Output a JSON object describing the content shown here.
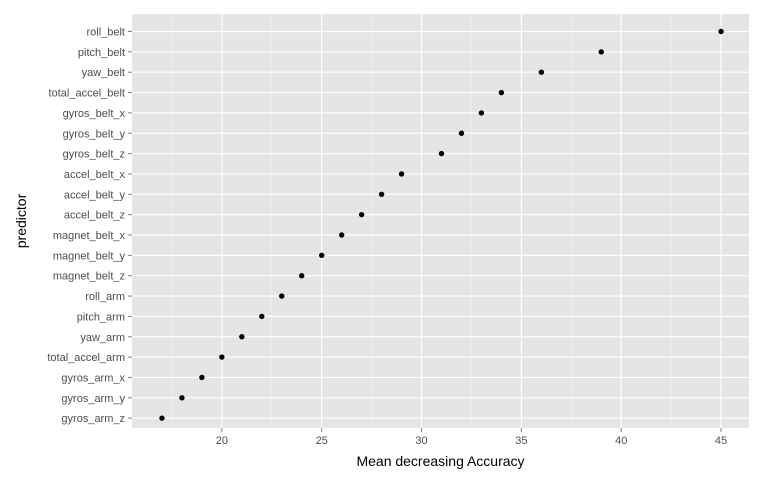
{
  "chart_data": {
    "type": "scatter",
    "title": "",
    "xlabel": "Mean decreasing Accuracy",
    "ylabel": "predictor",
    "xlim": [
      15.5,
      46.4
    ],
    "x_ticks": [
      20,
      25,
      30,
      35,
      40,
      45
    ],
    "x_tick_labels": [
      "20",
      "25",
      "30",
      "35",
      "40",
      "45"
    ],
    "grid": true,
    "legend": "none",
    "colors": {
      "panel_background": "#e5e5e5",
      "grid_major": "#ffffff",
      "grid_minor": "#f2f2f2",
      "point": "#000000",
      "tick_text": "#4d4d4d",
      "axis_title": "#000000"
    },
    "categories": [
      "roll_belt",
      "pitch_belt",
      "yaw_belt",
      "total_accel_belt",
      "gyros_belt_x",
      "gyros_belt_y",
      "gyros_belt_z",
      "accel_belt_x",
      "accel_belt_y",
      "accel_belt_z",
      "magnet_belt_x",
      "magnet_belt_y",
      "magnet_belt_z",
      "roll_arm",
      "pitch_arm",
      "yaw_arm",
      "total_accel_arm",
      "gyros_arm_x",
      "gyros_arm_y",
      "gyros_arm_z"
    ],
    "values": [
      45,
      39,
      36,
      34,
      33,
      32,
      31,
      29,
      28,
      27,
      26,
      25,
      24,
      23,
      22,
      21,
      20,
      19,
      18,
      17
    ]
  }
}
